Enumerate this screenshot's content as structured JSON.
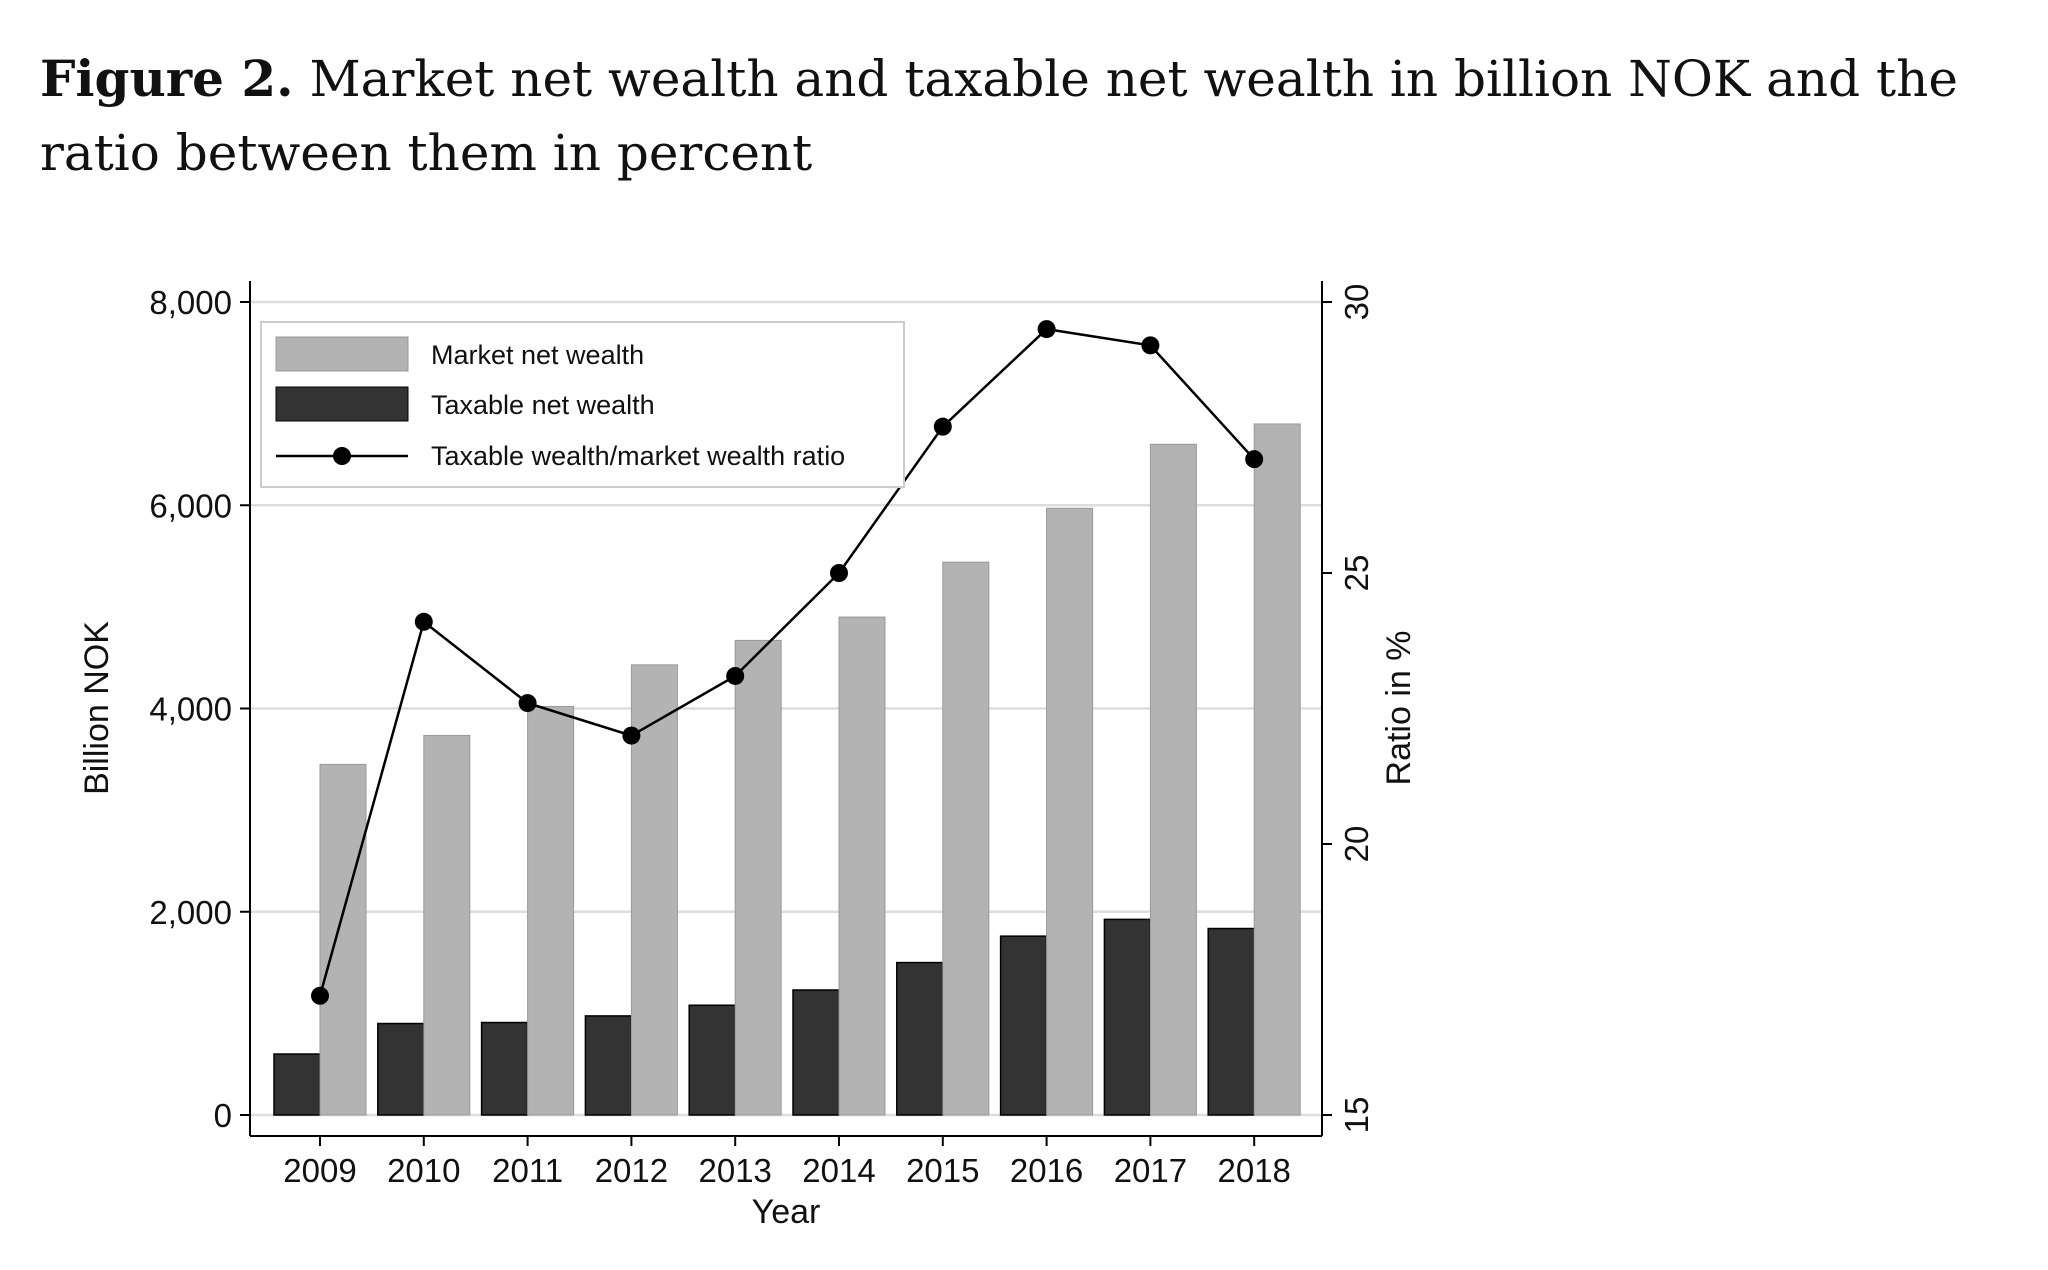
{
  "title": {
    "label": "Figure 2.",
    "text": "Market net wealth and taxable net wealth in billion NOK and the ratio between them in percent"
  },
  "chart_data": {
    "type": "bar+line",
    "xlabel": "Year",
    "ylabel": "Billion NOK",
    "y2label": "Ratio in %",
    "categories": [
      "2009",
      "2010",
      "2011",
      "2012",
      "2013",
      "2014",
      "2015",
      "2016",
      "2017",
      "2018"
    ],
    "ylim": [
      0,
      8000
    ],
    "yticks": [
      0,
      2000,
      4000,
      6000,
      8000
    ],
    "ytick_labels": [
      "0",
      "2,000",
      "4,000",
      "6,000",
      "8,000"
    ],
    "y2lim": [
      15,
      30
    ],
    "y2ticks": [
      15,
      20,
      25,
      30
    ],
    "y2tick_labels": [
      "15",
      "20",
      "25",
      "30"
    ],
    "grid": true,
    "legend": "top-left",
    "series": [
      {
        "name": "Market net wealth",
        "type": "bar",
        "axis": "left",
        "color": "#b3b3b3",
        "values": [
          3450,
          3735,
          4020,
          4430,
          4670,
          4900,
          5440,
          5970,
          6600,
          6800
        ]
      },
      {
        "name": "Taxable net wealth",
        "type": "bar",
        "axis": "left",
        "color": "#333333",
        "values": [
          600,
          900,
          910,
          975,
          1080,
          1230,
          1500,
          1760,
          1925,
          1835
        ]
      },
      {
        "name": "Taxable wealth/market wealth ratio",
        "type": "line",
        "axis": "right",
        "color": "#000000",
        "values": [
          17.2,
          24.1,
          22.6,
          22.0,
          23.1,
          25.0,
          27.7,
          29.5,
          29.2,
          27.1
        ]
      }
    ]
  }
}
